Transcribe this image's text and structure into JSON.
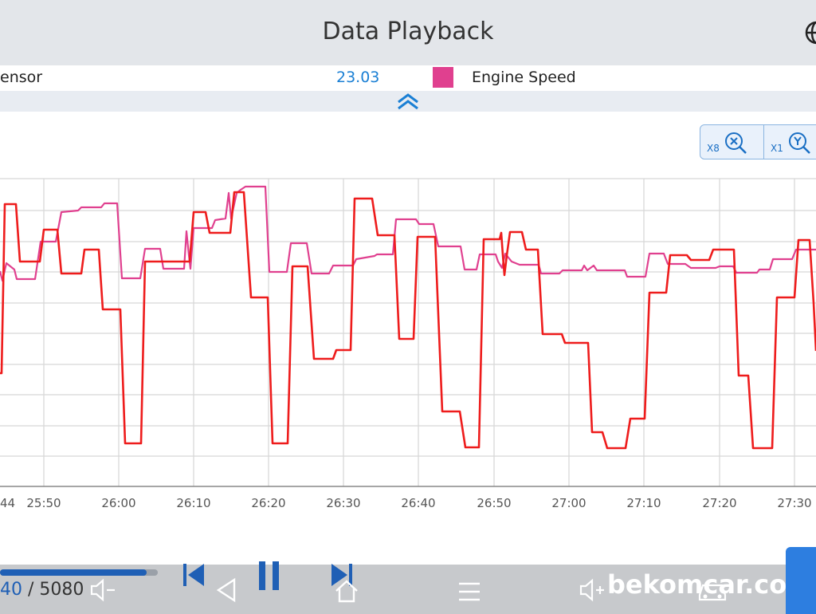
{
  "header": {
    "title": "Data Playback",
    "globe_icon": "globe-icon"
  },
  "legend": {
    "sensor_label": "ensor",
    "sensor_value": "23.03",
    "series_label": "Engine Speed",
    "series_color": "#e0408f"
  },
  "toolbar": {
    "zoom_x_label": "X8",
    "zoom_x_icon": "zoom-x-icon",
    "zoom_y_label": "X1",
    "zoom_y_icon": "zoom-y-icon"
  },
  "chart_data": {
    "type": "line",
    "x_ticks": [
      "44",
      "25:50",
      "26:00",
      "26:10",
      "26:20",
      "26:30",
      "26:40",
      "26:50",
      "27:00",
      "27:10",
      "27:20",
      "27:30"
    ],
    "grid": true,
    "series": [
      {
        "color": "#ee1c1c",
        "points": [
          [
            0,
            468
          ],
          [
            2,
            468
          ],
          [
            6,
            256
          ],
          [
            20,
            256
          ],
          [
            25,
            328
          ],
          [
            50,
            328
          ],
          [
            55,
            288
          ],
          [
            72,
            288
          ],
          [
            77,
            343
          ],
          [
            102,
            343
          ],
          [
            106,
            313
          ],
          [
            124,
            313
          ],
          [
            129,
            388
          ],
          [
            151,
            388
          ],
          [
            157,
            556
          ],
          [
            177,
            556
          ],
          [
            182,
            328
          ],
          [
            238,
            328
          ],
          [
            243,
            266
          ],
          [
            258,
            266
          ],
          [
            263,
            292
          ],
          [
            289,
            292
          ],
          [
            294,
            241
          ],
          [
            306,
            241
          ],
          [
            315,
            373
          ],
          [
            336,
            373
          ],
          [
            342,
            556
          ],
          [
            361,
            556
          ],
          [
            367,
            334
          ],
          [
            386,
            334
          ],
          [
            394,
            450
          ],
          [
            418,
            450
          ],
          [
            422,
            439
          ],
          [
            440,
            439
          ],
          [
            445,
            249
          ],
          [
            467,
            249
          ],
          [
            474,
            295
          ],
          [
            495,
            295
          ],
          [
            501,
            425
          ],
          [
            519,
            425
          ],
          [
            524,
            297
          ],
          [
            546,
            297
          ],
          [
            555,
            516
          ],
          [
            577,
            516
          ],
          [
            584,
            561
          ],
          [
            601,
            561
          ],
          [
            607,
            300
          ],
          [
            627,
            300
          ],
          [
            629,
            292
          ],
          [
            631,
            320
          ],
          [
            633,
            345
          ],
          [
            636,
            320
          ],
          [
            640,
            291
          ],
          [
            655,
            291
          ],
          [
            660,
            313
          ],
          [
            675,
            313
          ],
          [
            681,
            419
          ],
          [
            705,
            419
          ],
          [
            709,
            430
          ],
          [
            738,
            430
          ],
          [
            743,
            542
          ],
          [
            756,
            542
          ],
          [
            762,
            562
          ],
          [
            785,
            562
          ],
          [
            791,
            525
          ],
          [
            809,
            525
          ],
          [
            815,
            367
          ],
          [
            836,
            367
          ],
          [
            841,
            320
          ],
          [
            862,
            320
          ],
          [
            867,
            326
          ],
          [
            890,
            326
          ],
          [
            895,
            313
          ],
          [
            921,
            313
          ],
          [
            927,
            471
          ],
          [
            939,
            471
          ],
          [
            945,
            562
          ],
          [
            969,
            562
          ],
          [
            975,
            373
          ],
          [
            997,
            373
          ],
          [
            1002,
            301
          ],
          [
            1016,
            301
          ],
          [
            1021,
            380
          ],
          [
            1024,
            440
          ]
        ]
      },
      {
        "color": "#e0408f",
        "points": [
          [
            0,
            340
          ],
          [
            3,
            352
          ],
          [
            8,
            330
          ],
          [
            18,
            338
          ],
          [
            21,
            350
          ],
          [
            44,
            350
          ],
          [
            51,
            303
          ],
          [
            70,
            303
          ],
          [
            77,
            266
          ],
          [
            98,
            264
          ],
          [
            102,
            260
          ],
          [
            127,
            260
          ],
          [
            131,
            255
          ],
          [
            147,
            255
          ],
          [
            153,
            349
          ],
          [
            176,
            349
          ],
          [
            182,
            312
          ],
          [
            201,
            312
          ],
          [
            205,
            337
          ],
          [
            231,
            337
          ],
          [
            234,
            290
          ],
          [
            237,
            320
          ],
          [
            239,
            337
          ],
          [
            243,
            286
          ],
          [
            266,
            286
          ],
          [
            270,
            276
          ],
          [
            283,
            274
          ],
          [
            287,
            242
          ],
          [
            290,
            274
          ],
          [
            297,
            242
          ],
          [
            302,
            238
          ],
          [
            308,
            234
          ],
          [
            333,
            234
          ],
          [
            338,
            341
          ],
          [
            360,
            341
          ],
          [
            365,
            305
          ],
          [
            385,
            305
          ],
          [
            391,
            343
          ],
          [
            413,
            343
          ],
          [
            418,
            333
          ],
          [
            443,
            333
          ],
          [
            447,
            325
          ],
          [
            470,
            321
          ],
          [
            473,
            319
          ],
          [
            493,
            319
          ],
          [
            497,
            275
          ],
          [
            522,
            275
          ],
          [
            526,
            281
          ],
          [
            544,
            281
          ],
          [
            550,
            309
          ],
          [
            578,
            309
          ],
          [
            583,
            338
          ],
          [
            598,
            338
          ],
          [
            602,
            319
          ],
          [
            622,
            319
          ],
          [
            625,
            328
          ],
          [
            630,
            336
          ],
          [
            634,
            318
          ],
          [
            642,
            328
          ],
          [
            652,
            332
          ],
          [
            676,
            332
          ],
          [
            679,
            343
          ],
          [
            702,
            343
          ],
          [
            706,
            339
          ],
          [
            730,
            339
          ],
          [
            733,
            333
          ],
          [
            737,
            339
          ],
          [
            745,
            333
          ],
          [
            749,
            339
          ],
          [
            765,
            339
          ],
          [
            784,
            339
          ],
          [
            787,
            347
          ],
          [
            810,
            347
          ],
          [
            815,
            318
          ],
          [
            833,
            318
          ],
          [
            838,
            331
          ],
          [
            860,
            331
          ],
          [
            867,
            336
          ],
          [
            898,
            336
          ],
          [
            903,
            334
          ],
          [
            920,
            334
          ],
          [
            924,
            342
          ],
          [
            950,
            342
          ],
          [
            953,
            338
          ],
          [
            966,
            338
          ],
          [
            970,
            325
          ],
          [
            994,
            325
          ],
          [
            999,
            313
          ],
          [
            1024,
            313
          ]
        ]
      }
    ]
  },
  "player": {
    "current": "40",
    "separator": "/",
    "total": "5080",
    "progress": 0.93,
    "volume_down_icon": "volume-down-icon",
    "prev_icon": "skip-previous-icon",
    "pause_icon": "pause-icon",
    "next_icon": "skip-next-icon"
  },
  "system_nav": {
    "back_icon": "back-icon",
    "home_icon": "home-icon",
    "menu_icon": "menu-icon",
    "volume_up_icon": "volume-up-icon",
    "vehicle_icon": "vehicle-icon",
    "watermark": "bekomcar.com"
  }
}
